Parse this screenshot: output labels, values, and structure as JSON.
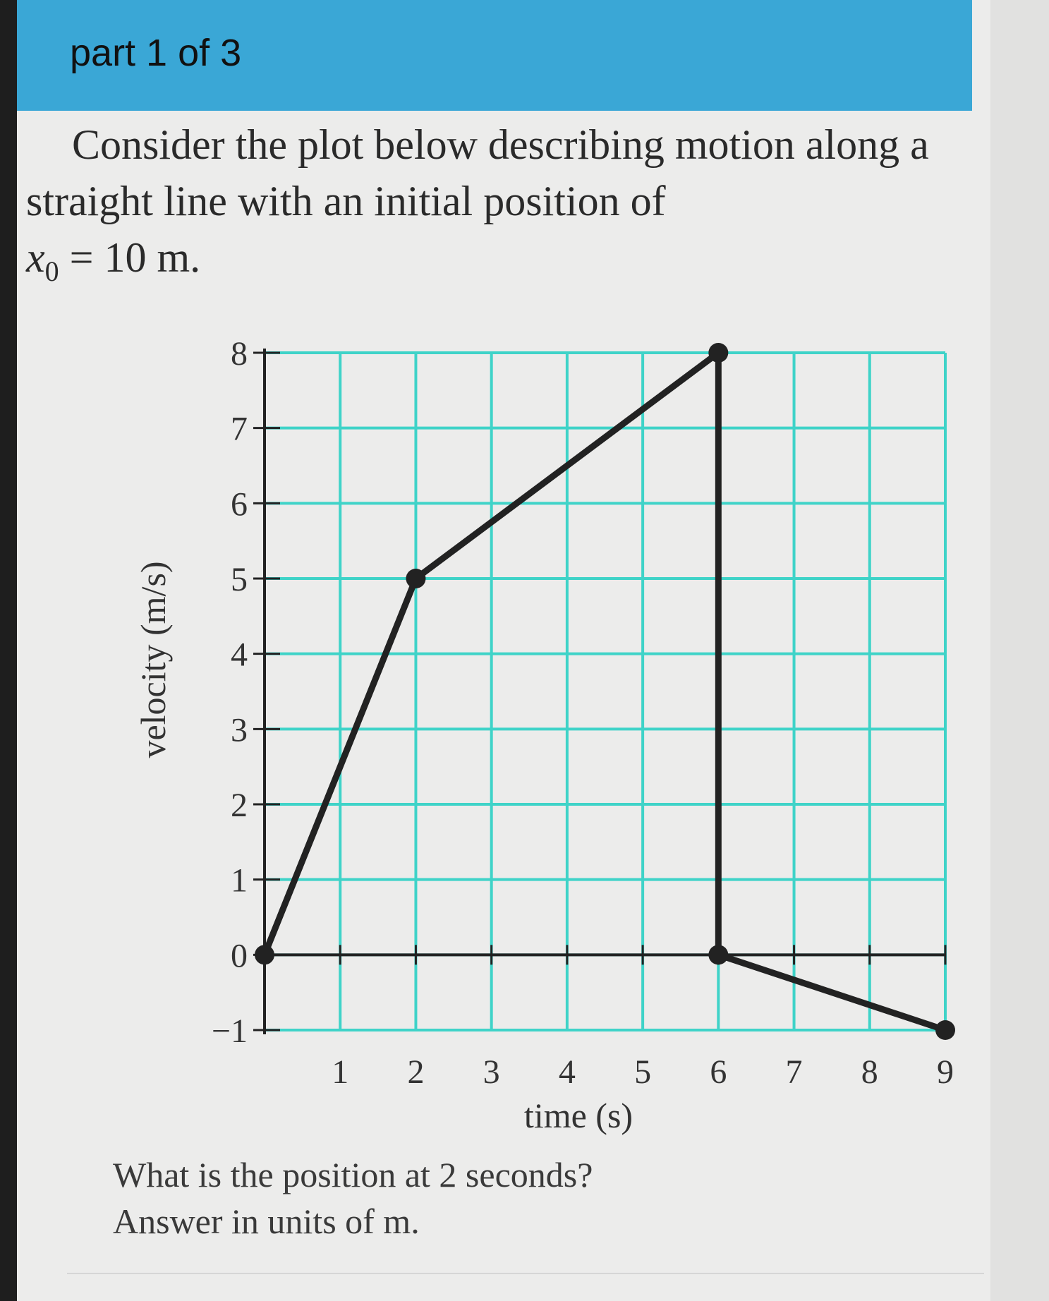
{
  "header": {
    "part_label": "part 1 of 3"
  },
  "question": {
    "text": "Consider the plot below describing motion along a straight line with an initial position of",
    "math_var": "x",
    "math_sub": "0",
    "math_rest": " = 10 m."
  },
  "prompt": {
    "question": "What is the position at 2 seconds?",
    "units": "Answer in units of  m."
  },
  "colors": {
    "header": "#3aa7d6",
    "grid": "#3fd3c8",
    "line": "#222222"
  },
  "chart_data": {
    "type": "line",
    "xlabel": "time (s)",
    "ylabel": "velocity (m/s)",
    "x_ticks": [
      "1",
      "2",
      "3",
      "4",
      "5",
      "6",
      "7",
      "8",
      "9"
    ],
    "y_ticks": [
      "−1",
      "0",
      "1",
      "2",
      "3",
      "4",
      "5",
      "6",
      "7",
      "8"
    ],
    "xlim": [
      0,
      9
    ],
    "ylim": [
      -1,
      8
    ],
    "grid": true,
    "series": [
      {
        "x": [
          0,
          2,
          6,
          6,
          9
        ],
        "y": [
          0,
          5,
          8,
          0,
          -1
        ],
        "markers_at_index": [
          0,
          1,
          2,
          3,
          4
        ]
      }
    ]
  }
}
